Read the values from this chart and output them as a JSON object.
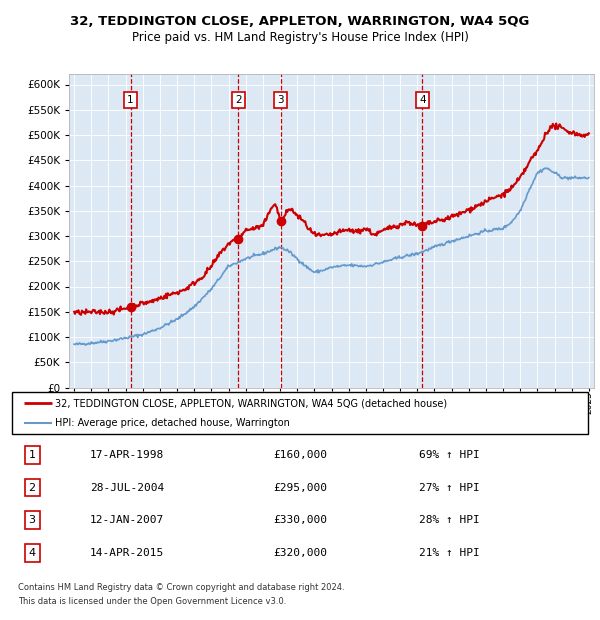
{
  "title1": "32, TEDDINGTON CLOSE, APPLETON, WARRINGTON, WA4 5QG",
  "title2": "Price paid vs. HM Land Registry's House Price Index (HPI)",
  "sale_labels": [
    "1",
    "2",
    "3",
    "4"
  ],
  "sale_year_floats": [
    1998.29,
    2004.56,
    2007.04,
    2015.29
  ],
  "sale_prices": [
    160000,
    295000,
    330000,
    320000
  ],
  "legend_line1": "32, TEDDINGTON CLOSE, APPLETON, WARRINGTON, WA4 5QG (detached house)",
  "legend_line2": "HPI: Average price, detached house, Warrington",
  "table_rows": [
    [
      "1",
      "17-APR-1998",
      "£160,000",
      "69% ↑ HPI"
    ],
    [
      "2",
      "28-JUL-2004",
      "£295,000",
      "27% ↑ HPI"
    ],
    [
      "3",
      "12-JAN-2007",
      "£330,000",
      "28% ↑ HPI"
    ],
    [
      "4",
      "14-APR-2015",
      "£320,000",
      "21% ↑ HPI"
    ]
  ],
  "footnote1": "Contains HM Land Registry data © Crown copyright and database right 2024.",
  "footnote2": "This data is licensed under the Open Government Licence v3.0.",
  "bg_color": "#dce9f5",
  "red_color": "#cc0000",
  "blue_color": "#6699cc",
  "ylim": [
    0,
    620000
  ],
  "yticks": [
    0,
    50000,
    100000,
    150000,
    200000,
    250000,
    300000,
    350000,
    400000,
    450000,
    500000,
    550000,
    600000
  ],
  "xlim_min": 1994.7,
  "xlim_max": 2025.3
}
